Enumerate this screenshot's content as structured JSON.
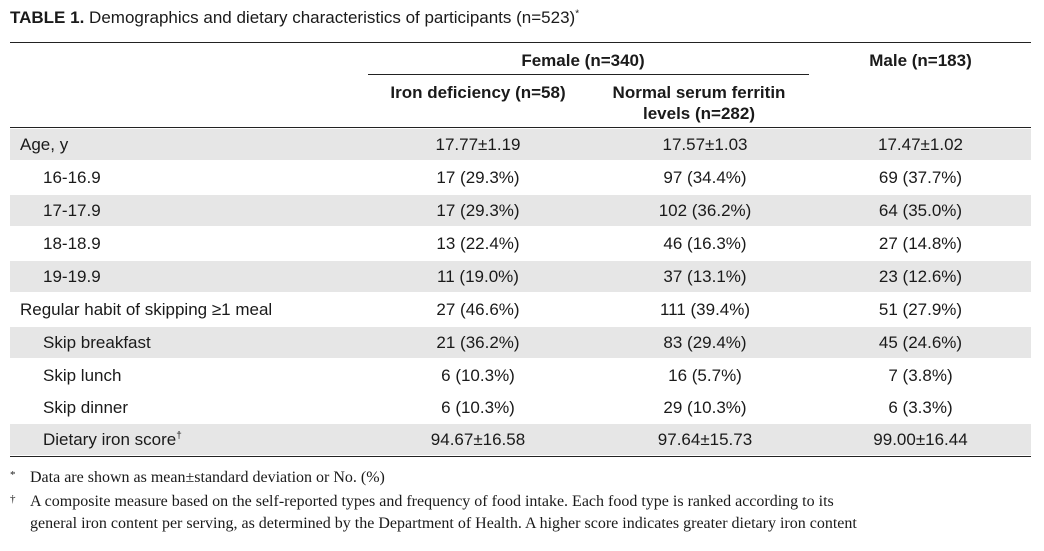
{
  "title": {
    "label": "TABLE 1.",
    "text": "Demographics and dietary characteristics of participants (n=523)",
    "mark": "*"
  },
  "headers": {
    "female": "Female (n=340)",
    "male": "Male (n=183)",
    "iron_deficiency": "Iron deficiency (n=58)",
    "normal_ferritin_line1": "Normal serum ferritin",
    "normal_ferritin_line2": "levels (n=282)"
  },
  "rows": [
    {
      "label": "Age, y",
      "c1": "17.77±1.19",
      "c2": "17.57±1.03",
      "c3": "17.47±1.02"
    },
    {
      "label": "16-16.9",
      "c1": "17 (29.3%)",
      "c2": "97 (34.4%)",
      "c3": "69 (37.7%)"
    },
    {
      "label": "17-17.9",
      "c1": "17 (29.3%)",
      "c2": "102 (36.2%)",
      "c3": "64 (35.0%)"
    },
    {
      "label": "18-18.9",
      "c1": "13 (22.4%)",
      "c2": "46 (16.3%)",
      "c3": "27 (14.8%)"
    },
    {
      "label": "19-19.9",
      "c1": "11 (19.0%)",
      "c2": "37 (13.1%)",
      "c3": "23 (12.6%)"
    },
    {
      "label": "Regular habit of skipping ≥1 meal",
      "c1": "27 (46.6%)",
      "c2": "111 (39.4%)",
      "c3": "51 (27.9%)"
    },
    {
      "label": "Skip breakfast",
      "c1": "21 (36.2%)",
      "c2": "83 (29.4%)",
      "c3": "45 (24.6%)"
    },
    {
      "label": "Skip lunch",
      "c1": "6 (10.3%)",
      "c2": "16 (5.7%)",
      "c3": "7 (3.8%)"
    },
    {
      "label": "Skip dinner",
      "c1": "6 (10.3%)",
      "c2": "29 (10.3%)",
      "c3": "6 (3.3%)"
    },
    {
      "label": "Dietary iron score",
      "mark": "†",
      "c1": "94.67±16.58",
      "c2": "97.64±15.73",
      "c3": "99.00±16.44"
    }
  ],
  "footnotes": [
    {
      "mark": "*",
      "text": "Data are shown as mean±standard deviation or No. (%)"
    },
    {
      "mark": "†",
      "text": "A composite measure based on the self-reported types and frequency of food intake. Each food type is ranked according to its"
    },
    {
      "mark": "",
      "text": "general iron content per serving, as determined by the Department of Health. A higher score indicates greater dietary iron content"
    }
  ]
}
